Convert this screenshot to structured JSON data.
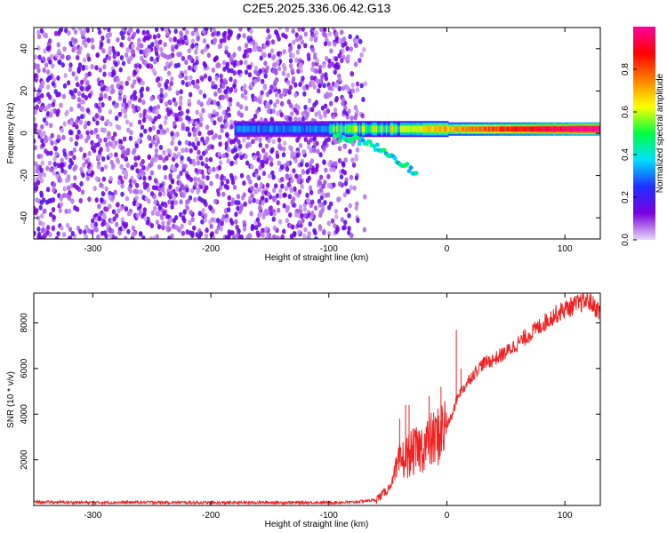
{
  "chart_data": [
    {
      "type": "heatmap",
      "title": "C2E5.2025.336.06.42.G13",
      "xlabel": "Height of straight line (km)",
      "ylabel": "Frequency (Hz)",
      "xlim": [
        -350,
        130
      ],
      "ylim": [
        -50,
        50
      ],
      "xticks": [
        -300,
        -200,
        -100,
        0,
        100
      ],
      "yticks": [
        -40,
        -20,
        0,
        20,
        40
      ],
      "colorbar": {
        "label": "Normalized spectral amplitude",
        "range": [
          0,
          1
        ],
        "ticks": [
          0.0,
          0.2,
          0.4,
          0.6,
          0.8
        ],
        "tick_labels": [
          "0.0",
          "0.2",
          "0.4",
          "0.6",
          "0.8"
        ],
        "colors": [
          "#e8d8f8",
          "#7a00e0",
          "#2030ff",
          "#00e0ff",
          "#00ff40",
          "#ffff00",
          "#ff8000",
          "#ff0000",
          "#ff00a0"
        ]
      },
      "features": {
        "noise_region_x": [
          -350,
          -65
        ],
        "signal_center_hz": 2,
        "strong_signal_start_x": -100
      }
    },
    {
      "type": "line",
      "title": "",
      "xlabel": "Height of straight line (km)",
      "ylabel": "SNR (10 * v/v)",
      "xlim": [
        -350,
        130
      ],
      "ylim": [
        0,
        9300
      ],
      "xticks": [
        -300,
        -200,
        -100,
        0,
        100
      ],
      "yticks": [
        2000,
        4000,
        6000,
        8000
      ],
      "color": "#ee2222",
      "x": [
        -350,
        -300,
        -250,
        -200,
        -150,
        -100,
        -80,
        -60,
        -50,
        -45,
        -40,
        -35,
        -30,
        -25,
        -20,
        -15,
        -10,
        -5,
        0,
        5,
        8,
        10,
        15,
        20,
        25,
        30,
        40,
        50,
        60,
        70,
        80,
        90,
        100,
        110,
        120,
        125,
        130
      ],
      "values": [
        150,
        130,
        140,
        120,
        130,
        130,
        140,
        250,
        700,
        1200,
        1900,
        2100,
        2300,
        2400,
        2600,
        2800,
        2900,
        3200,
        3500,
        4000,
        4600,
        4900,
        5200,
        5600,
        5900,
        6200,
        6400,
        6700,
        7100,
        7500,
        7900,
        8300,
        8600,
        8800,
        9000,
        8700,
        8500
      ],
      "spikes": [
        {
          "x": -40,
          "value": 3800
        },
        {
          "x": -35,
          "value": 4400
        },
        {
          "x": -32,
          "value": 4400
        },
        {
          "x": -15,
          "value": 4800
        },
        {
          "x": -5,
          "value": 5200
        },
        {
          "x": 8,
          "value": 7700
        },
        {
          "x": 12,
          "value": 6000
        }
      ]
    }
  ]
}
